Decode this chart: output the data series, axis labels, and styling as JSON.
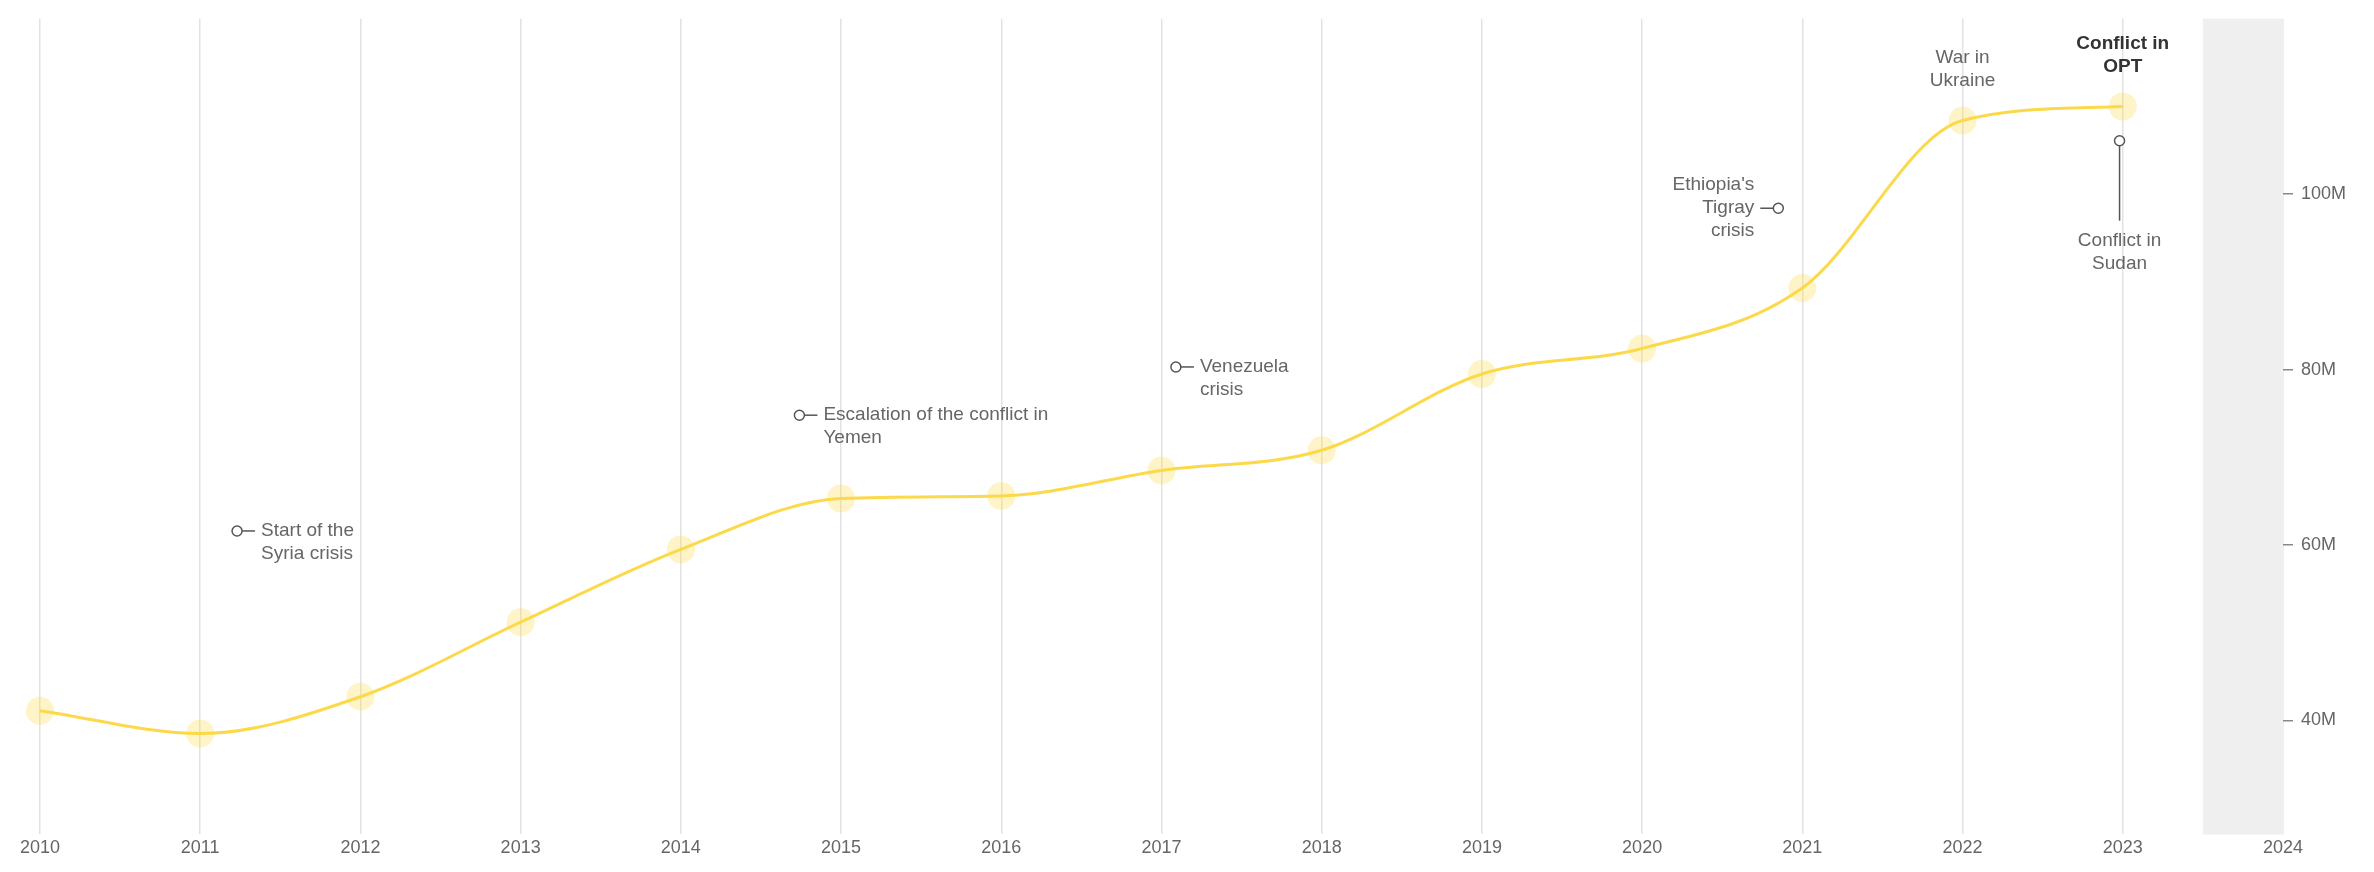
{
  "chart_data": {
    "type": "line",
    "x": [
      2010,
      2011,
      2012,
      2013,
      2014,
      2015,
      2016,
      2017,
      2018,
      2019,
      2020,
      2021,
      2022,
      2023
    ],
    "series": [
      {
        "color": "#fcd94a",
        "values": [
          41.1,
          38.5,
          42.7,
          51.2,
          59.5,
          65.3,
          65.6,
          68.5,
          70.8,
          79.5,
          82.4,
          89.3,
          108.4,
          110
        ]
      }
    ],
    "xlim": [
      2010,
      2024
    ],
    "xticks": [
      2010,
      2011,
      2012,
      2013,
      2014,
      2015,
      2016,
      2017,
      2018,
      2019,
      2020,
      2021,
      2022,
      2023,
      2024
    ],
    "ylim": [
      27,
      120
    ],
    "yticks": [
      {
        "value": 40,
        "label": "40M"
      },
      {
        "value": 60,
        "label": "60M"
      },
      {
        "value": 80,
        "label": "80M"
      },
      {
        "value": 100,
        "label": "100M"
      }
    ],
    "grid": "x",
    "marker": "circle",
    "legend": false,
    "bands": [
      {
        "axis": "x",
        "from": 2023.5,
        "to": 2024,
        "color": "#efefef"
      }
    ],
    "annotations": [
      {
        "text": "Start of the Syria crisis",
        "x": 2011.23,
        "y": 61.6
      },
      {
        "text": "Escalation of the conflict in Yemen",
        "x": 2014.74,
        "y": 74.8
      },
      {
        "text": "Venezuela crisis",
        "x": 2017.09,
        "y": 80.3
      },
      {
        "text": "Ethiopia's Tigray crisis",
        "x": 2020.85,
        "y": 98.4
      },
      {
        "text": "War in Ukraine",
        "x": 2022,
        "y": 108.4
      },
      {
        "text": "Conflict in OPT",
        "x": 2023,
        "y": 110
      },
      {
        "text": "Conflict in Sudan",
        "x": 2022.98,
        "y": 106.1
      }
    ]
  }
}
